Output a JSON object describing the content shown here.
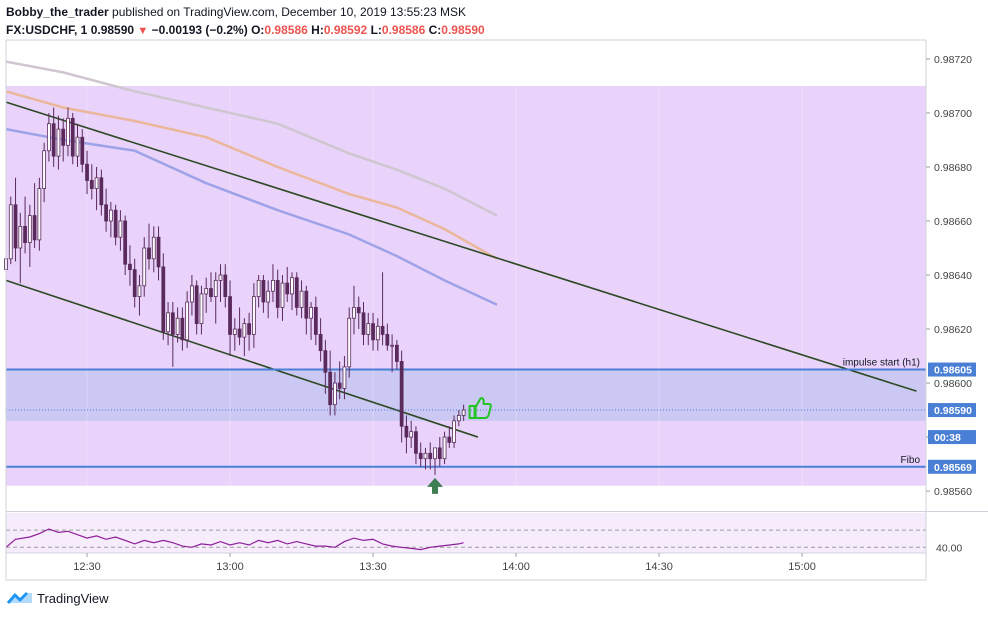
{
  "header": {
    "author": "Bobby_the_trader",
    "published": "published on TradingView.com, December 10, 2019 13:55:23 MSK",
    "symbol": "FX:USDCHF, 1",
    "last": "0.98590",
    "change_arrow": "▼",
    "change": "−0.00193 (−0.2%)",
    "o_label": "O:",
    "o": "0.98586",
    "h_label": "H:",
    "h": "0.98592",
    "l_label": "L:",
    "l": "0.98586",
    "c_label": "C:",
    "c": "0.98590"
  },
  "footer": {
    "brand": "TradingView",
    "logo_icon": "tradingview-logo-icon"
  },
  "chart_data": {
    "type": "candlestick",
    "symbol": "FX:USDCHF",
    "interval": "1",
    "y_range": [
      0.98553,
      0.98727
    ],
    "y_ticks": [
      "0.98720",
      "0.98700",
      "0.98680",
      "0.98660",
      "0.98640",
      "0.98620",
      "0.98600",
      "0.98580",
      "0.98560"
    ],
    "x_ticks": [
      "12:30",
      "13:00",
      "13:30",
      "14:00",
      "14:30",
      "15:00"
    ],
    "x_tick_minutes": [
      750,
      780,
      810,
      840,
      870,
      900
    ],
    "x_range_minutes": [
      733,
      926
    ],
    "price_tags": [
      {
        "label": "0.98605",
        "price": 0.98605,
        "color": "#4a7fd6"
      },
      {
        "label": "0.98590",
        "price": 0.9859,
        "color": "#4a7fd6"
      },
      {
        "label": "00:38",
        "price": 0.9858,
        "color": "#4a7fd6"
      },
      {
        "label": "0.98569",
        "price": 0.98569,
        "color": "#4a7fd6"
      }
    ],
    "zones": [
      {
        "from": 0.98562,
        "to": 0.9871,
        "color": "#e9d3fb"
      },
      {
        "from": 0.98586,
        "to": 0.98605,
        "color": "#ccc8f4"
      }
    ],
    "horizontal_lines": [
      {
        "price": 0.98605,
        "label": "impulse start (h1)",
        "color": "#4a7fd6"
      },
      {
        "price": 0.98569,
        "label": "Fibo",
        "color": "#4a7fd6"
      }
    ],
    "trend_lines": [
      {
        "t1": 733,
        "p1": 0.98704,
        "t2": 924,
        "p2": 0.98597,
        "color": "#2e4a25"
      },
      {
        "t1": 733,
        "p1": 0.98638,
        "t2": 832,
        "p2": 0.9858,
        "color": "#2e4a25"
      }
    ],
    "moving_averages": [
      {
        "color": "#cfc6cf",
        "points": [
          [
            733,
            0.98719
          ],
          [
            745,
            0.98715
          ],
          [
            760,
            0.98708
          ],
          [
            775,
            0.98702
          ],
          [
            790,
            0.98696
          ],
          [
            805,
            0.98685
          ],
          [
            815,
            0.98679
          ],
          [
            825,
            0.98672
          ],
          [
            836,
            0.98662
          ]
        ]
      },
      {
        "color": "#eab79b",
        "points": [
          [
            733,
            0.98708
          ],
          [
            745,
            0.98702
          ],
          [
            760,
            0.98697
          ],
          [
            775,
            0.98691
          ],
          [
            790,
            0.9868
          ],
          [
            805,
            0.9867
          ],
          [
            815,
            0.98665
          ],
          [
            825,
            0.98657
          ],
          [
            836,
            0.98646
          ]
        ]
      },
      {
        "color": "#9ea3e8",
        "points": [
          [
            733,
            0.98694
          ],
          [
            745,
            0.9869
          ],
          [
            760,
            0.98686
          ],
          [
            775,
            0.98674
          ],
          [
            790,
            0.98664
          ],
          [
            805,
            0.98655
          ],
          [
            815,
            0.98647
          ],
          [
            825,
            0.98638
          ],
          [
            836,
            0.98629
          ]
        ]
      }
    ],
    "candles": [
      {
        "t": 733,
        "o": 0.98642,
        "h": 0.98649,
        "l": 0.98636,
        "c": 0.98646
      },
      {
        "t": 734,
        "o": 0.98646,
        "h": 0.98669,
        "l": 0.98644,
        "c": 0.98666
      },
      {
        "t": 735,
        "o": 0.98666,
        "h": 0.98676,
        "l": 0.98645,
        "c": 0.9865
      },
      {
        "t": 736,
        "o": 0.9865,
        "h": 0.98663,
        "l": 0.98637,
        "c": 0.98658
      },
      {
        "t": 737,
        "o": 0.98658,
        "h": 0.98669,
        "l": 0.98648,
        "c": 0.98652
      },
      {
        "t": 738,
        "o": 0.98652,
        "h": 0.98666,
        "l": 0.98643,
        "c": 0.98662
      },
      {
        "t": 739,
        "o": 0.98662,
        "h": 0.98674,
        "l": 0.9865,
        "c": 0.98653
      },
      {
        "t": 740,
        "o": 0.98653,
        "h": 0.98676,
        "l": 0.98649,
        "c": 0.98672
      },
      {
        "t": 741,
        "o": 0.98672,
        "h": 0.98689,
        "l": 0.98667,
        "c": 0.98686
      },
      {
        "t": 742,
        "o": 0.98686,
        "h": 0.987,
        "l": 0.98682,
        "c": 0.98696
      },
      {
        "t": 743,
        "o": 0.98696,
        "h": 0.98702,
        "l": 0.9868,
        "c": 0.98684
      },
      {
        "t": 744,
        "o": 0.98684,
        "h": 0.98699,
        "l": 0.98679,
        "c": 0.98694
      },
      {
        "t": 745,
        "o": 0.98694,
        "h": 0.98698,
        "l": 0.98682,
        "c": 0.98688
      },
      {
        "t": 746,
        "o": 0.98688,
        "h": 0.98702,
        "l": 0.98684,
        "c": 0.98698
      },
      {
        "t": 747,
        "o": 0.98698,
        "h": 0.987,
        "l": 0.98681,
        "c": 0.98684
      },
      {
        "t": 748,
        "o": 0.98684,
        "h": 0.98696,
        "l": 0.9868,
        "c": 0.98691
      },
      {
        "t": 749,
        "o": 0.98691,
        "h": 0.98694,
        "l": 0.98678,
        "c": 0.98681
      },
      {
        "t": 750,
        "o": 0.98681,
        "h": 0.98686,
        "l": 0.9867,
        "c": 0.98675
      },
      {
        "t": 751,
        "o": 0.98675,
        "h": 0.98681,
        "l": 0.98668,
        "c": 0.98672
      },
      {
        "t": 752,
        "o": 0.98672,
        "h": 0.9868,
        "l": 0.98664,
        "c": 0.98676
      },
      {
        "t": 753,
        "o": 0.98676,
        "h": 0.98679,
        "l": 0.98662,
        "c": 0.98666
      },
      {
        "t": 754,
        "o": 0.98666,
        "h": 0.98672,
        "l": 0.98656,
        "c": 0.9866
      },
      {
        "t": 755,
        "o": 0.9866,
        "h": 0.98667,
        "l": 0.98654,
        "c": 0.98664
      },
      {
        "t": 756,
        "o": 0.98664,
        "h": 0.98666,
        "l": 0.98651,
        "c": 0.98654
      },
      {
        "t": 757,
        "o": 0.98654,
        "h": 0.98664,
        "l": 0.98649,
        "c": 0.9866
      },
      {
        "t": 758,
        "o": 0.9866,
        "h": 0.98662,
        "l": 0.9864,
        "c": 0.98644
      },
      {
        "t": 759,
        "o": 0.98644,
        "h": 0.98651,
        "l": 0.98636,
        "c": 0.98642
      },
      {
        "t": 760,
        "o": 0.98642,
        "h": 0.98646,
        "l": 0.98628,
        "c": 0.98632
      },
      {
        "t": 761,
        "o": 0.98632,
        "h": 0.9864,
        "l": 0.98625,
        "c": 0.98636
      },
      {
        "t": 762,
        "o": 0.98636,
        "h": 0.98654,
        "l": 0.98632,
        "c": 0.9865
      },
      {
        "t": 763,
        "o": 0.9865,
        "h": 0.98659,
        "l": 0.98642,
        "c": 0.98646
      },
      {
        "t": 764,
        "o": 0.98646,
        "h": 0.98658,
        "l": 0.98641,
        "c": 0.98654
      },
      {
        "t": 765,
        "o": 0.98654,
        "h": 0.98658,
        "l": 0.98638,
        "c": 0.98643
      },
      {
        "t": 766,
        "o": 0.98643,
        "h": 0.98648,
        "l": 0.98616,
        "c": 0.98619
      },
      {
        "t": 767,
        "o": 0.98619,
        "h": 0.9863,
        "l": 0.98614,
        "c": 0.98626
      },
      {
        "t": 768,
        "o": 0.98626,
        "h": 0.9863,
        "l": 0.98606,
        "c": 0.98618
      },
      {
        "t": 769,
        "o": 0.98618,
        "h": 0.98628,
        "l": 0.98615,
        "c": 0.98624
      },
      {
        "t": 770,
        "o": 0.98624,
        "h": 0.98628,
        "l": 0.98612,
        "c": 0.98616
      },
      {
        "t": 771,
        "o": 0.98616,
        "h": 0.98634,
        "l": 0.98613,
        "c": 0.9863
      },
      {
        "t": 772,
        "o": 0.9863,
        "h": 0.9864,
        "l": 0.98625,
        "c": 0.98636
      },
      {
        "t": 773,
        "o": 0.98636,
        "h": 0.98638,
        "l": 0.98618,
        "c": 0.98622
      },
      {
        "t": 774,
        "o": 0.98622,
        "h": 0.98636,
        "l": 0.98618,
        "c": 0.98633
      },
      {
        "t": 775,
        "o": 0.98633,
        "h": 0.98639,
        "l": 0.98626,
        "c": 0.98635
      },
      {
        "t": 776,
        "o": 0.98635,
        "h": 0.98641,
        "l": 0.9863,
        "c": 0.98632
      },
      {
        "t": 777,
        "o": 0.98632,
        "h": 0.98641,
        "l": 0.98622,
        "c": 0.98638
      },
      {
        "t": 778,
        "o": 0.98638,
        "h": 0.98644,
        "l": 0.9863,
        "c": 0.9864
      },
      {
        "t": 779,
        "o": 0.9864,
        "h": 0.98644,
        "l": 0.98628,
        "c": 0.98632
      },
      {
        "t": 780,
        "o": 0.98632,
        "h": 0.98638,
        "l": 0.9861,
        "c": 0.98618
      },
      {
        "t": 781,
        "o": 0.98618,
        "h": 0.98624,
        "l": 0.98612,
        "c": 0.9862
      },
      {
        "t": 782,
        "o": 0.9862,
        "h": 0.98628,
        "l": 0.98614,
        "c": 0.98617
      },
      {
        "t": 783,
        "o": 0.98617,
        "h": 0.98624,
        "l": 0.9861,
        "c": 0.98622
      },
      {
        "t": 784,
        "o": 0.98622,
        "h": 0.98626,
        "l": 0.98612,
        "c": 0.98618
      },
      {
        "t": 785,
        "o": 0.98618,
        "h": 0.98637,
        "l": 0.98613,
        "c": 0.98632
      },
      {
        "t": 786,
        "o": 0.98632,
        "h": 0.9864,
        "l": 0.98628,
        "c": 0.98638
      },
      {
        "t": 787,
        "o": 0.98638,
        "h": 0.9864,
        "l": 0.98626,
        "c": 0.9863
      },
      {
        "t": 788,
        "o": 0.9863,
        "h": 0.98638,
        "l": 0.98624,
        "c": 0.98634
      },
      {
        "t": 789,
        "o": 0.98634,
        "h": 0.98644,
        "l": 0.9863,
        "c": 0.98638
      },
      {
        "t": 790,
        "o": 0.98638,
        "h": 0.98642,
        "l": 0.98624,
        "c": 0.98628
      },
      {
        "t": 791,
        "o": 0.98628,
        "h": 0.9864,
        "l": 0.98623,
        "c": 0.98637
      },
      {
        "t": 792,
        "o": 0.98637,
        "h": 0.98643,
        "l": 0.9863,
        "c": 0.98633
      },
      {
        "t": 793,
        "o": 0.98633,
        "h": 0.98641,
        "l": 0.98627,
        "c": 0.98639
      },
      {
        "t": 794,
        "o": 0.98639,
        "h": 0.98641,
        "l": 0.98625,
        "c": 0.98628
      },
      {
        "t": 795,
        "o": 0.98628,
        "h": 0.98638,
        "l": 0.98624,
        "c": 0.98634
      },
      {
        "t": 796,
        "o": 0.98634,
        "h": 0.98636,
        "l": 0.98618,
        "c": 0.98624
      },
      {
        "t": 797,
        "o": 0.98624,
        "h": 0.9863,
        "l": 0.98616,
        "c": 0.98628
      },
      {
        "t": 798,
        "o": 0.98628,
        "h": 0.98632,
        "l": 0.98614,
        "c": 0.98618
      },
      {
        "t": 799,
        "o": 0.98618,
        "h": 0.98624,
        "l": 0.98608,
        "c": 0.98612
      },
      {
        "t": 800,
        "o": 0.98612,
        "h": 0.98616,
        "l": 0.98596,
        "c": 0.98604
      },
      {
        "t": 801,
        "o": 0.98604,
        "h": 0.98612,
        "l": 0.98588,
        "c": 0.98592
      },
      {
        "t": 802,
        "o": 0.98592,
        "h": 0.98604,
        "l": 0.98588,
        "c": 0.986
      },
      {
        "t": 803,
        "o": 0.986,
        "h": 0.98608,
        "l": 0.98594,
        "c": 0.98598
      },
      {
        "t": 804,
        "o": 0.98598,
        "h": 0.9861,
        "l": 0.98594,
        "c": 0.98606
      },
      {
        "t": 805,
        "o": 0.98606,
        "h": 0.98628,
        "l": 0.98602,
        "c": 0.98624
      },
      {
        "t": 806,
        "o": 0.98624,
        "h": 0.98636,
        "l": 0.98618,
        "c": 0.98628
      },
      {
        "t": 807,
        "o": 0.98628,
        "h": 0.98632,
        "l": 0.9862,
        "c": 0.98626
      },
      {
        "t": 808,
        "o": 0.98626,
        "h": 0.9863,
        "l": 0.98614,
        "c": 0.98618
      },
      {
        "t": 809,
        "o": 0.98618,
        "h": 0.98626,
        "l": 0.98614,
        "c": 0.98622
      },
      {
        "t": 810,
        "o": 0.98622,
        "h": 0.98626,
        "l": 0.98612,
        "c": 0.98616
      },
      {
        "t": 811,
        "o": 0.98616,
        "h": 0.98624,
        "l": 0.98612,
        "c": 0.98621
      },
      {
        "t": 812,
        "o": 0.98621,
        "h": 0.98641,
        "l": 0.98614,
        "c": 0.98618
      },
      {
        "t": 813,
        "o": 0.98618,
        "h": 0.98622,
        "l": 0.98612,
        "c": 0.98614
      },
      {
        "t": 814,
        "o": 0.98614,
        "h": 0.98618,
        "l": 0.98604,
        "c": 0.98614
      },
      {
        "t": 815,
        "o": 0.98614,
        "h": 0.98616,
        "l": 0.98605,
        "c": 0.98608
      },
      {
        "t": 816,
        "o": 0.98608,
        "h": 0.98612,
        "l": 0.98578,
        "c": 0.98584
      },
      {
        "t": 817,
        "o": 0.98584,
        "h": 0.98588,
        "l": 0.98574,
        "c": 0.9858
      },
      {
        "t": 818,
        "o": 0.9858,
        "h": 0.98586,
        "l": 0.98576,
        "c": 0.98582
      },
      {
        "t": 819,
        "o": 0.98582,
        "h": 0.98584,
        "l": 0.9857,
        "c": 0.98574
      },
      {
        "t": 820,
        "o": 0.98574,
        "h": 0.98578,
        "l": 0.98569,
        "c": 0.98572
      },
      {
        "t": 821,
        "o": 0.98572,
        "h": 0.98576,
        "l": 0.98568,
        "c": 0.98574
      },
      {
        "t": 822,
        "o": 0.98574,
        "h": 0.98578,
        "l": 0.98568,
        "c": 0.98572
      },
      {
        "t": 823,
        "o": 0.98572,
        "h": 0.98576,
        "l": 0.98566,
        "c": 0.98576
      },
      {
        "t": 824,
        "o": 0.98576,
        "h": 0.9858,
        "l": 0.98569,
        "c": 0.98572
      },
      {
        "t": 825,
        "o": 0.98572,
        "h": 0.98582,
        "l": 0.9857,
        "c": 0.9858
      },
      {
        "t": 826,
        "o": 0.9858,
        "h": 0.98584,
        "l": 0.98576,
        "c": 0.98578
      },
      {
        "t": 827,
        "o": 0.98578,
        "h": 0.98588,
        "l": 0.98576,
        "c": 0.98586
      },
      {
        "t": 828,
        "o": 0.98586,
        "h": 0.9859,
        "l": 0.98584,
        "c": 0.98588
      },
      {
        "t": 829,
        "o": 0.98588,
        "h": 0.98592,
        "l": 0.98586,
        "c": 0.9859
      }
    ],
    "rsi": {
      "levels": [
        55,
        40
      ],
      "level_label": "40.00",
      "range": [
        35,
        70
      ],
      "points": [
        [
          733,
          40
        ],
        [
          735,
          47
        ],
        [
          738,
          49
        ],
        [
          740,
          52
        ],
        [
          742,
          56
        ],
        [
          744,
          53
        ],
        [
          746,
          54
        ],
        [
          748,
          51
        ],
        [
          750,
          48
        ],
        [
          752,
          50
        ],
        [
          754,
          47
        ],
        [
          756,
          49
        ],
        [
          758,
          46
        ],
        [
          760,
          43
        ],
        [
          762,
          46
        ],
        [
          764,
          44
        ],
        [
          766,
          46
        ],
        [
          768,
          44
        ],
        [
          770,
          41
        ],
        [
          772,
          40
        ],
        [
          774,
          43
        ],
        [
          776,
          42
        ],
        [
          778,
          45
        ],
        [
          780,
          42
        ],
        [
          782,
          44
        ],
        [
          784,
          42
        ],
        [
          786,
          46
        ],
        [
          788,
          44
        ],
        [
          790,
          46
        ],
        [
          792,
          43
        ],
        [
          794,
          45
        ],
        [
          796,
          43
        ],
        [
          798,
          41
        ],
        [
          800,
          41
        ],
        [
          802,
          40
        ],
        [
          804,
          45
        ],
        [
          806,
          48
        ],
        [
          808,
          46
        ],
        [
          810,
          47
        ],
        [
          812,
          43
        ],
        [
          814,
          41
        ],
        [
          816,
          40
        ],
        [
          818,
          39
        ],
        [
          820,
          38
        ],
        [
          822,
          40
        ],
        [
          824,
          41
        ],
        [
          826,
          42
        ],
        [
          828,
          43
        ],
        [
          829,
          44
        ]
      ]
    }
  }
}
